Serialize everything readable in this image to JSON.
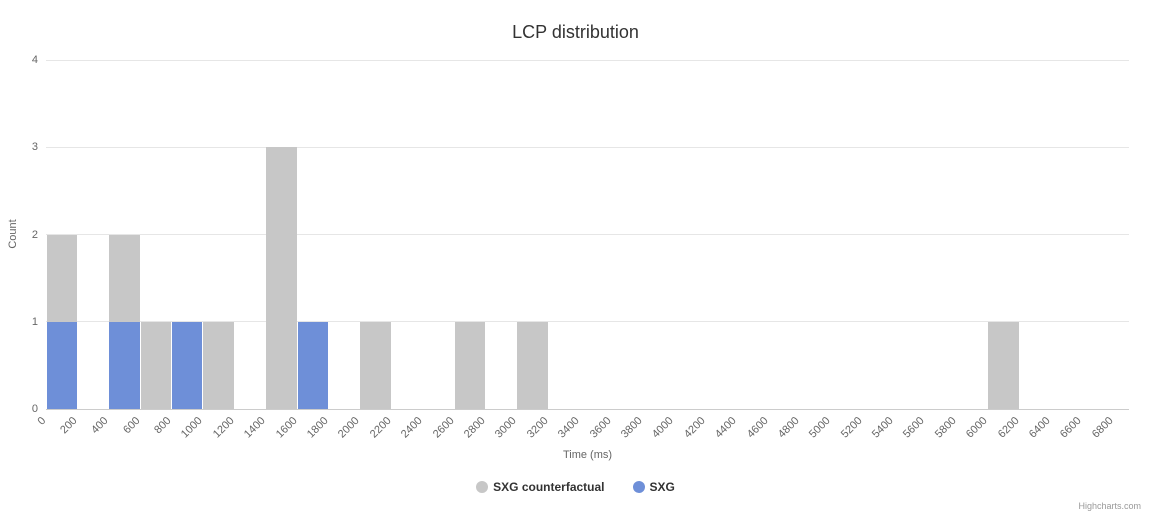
{
  "chart": {
    "credits_label": "Highcharts.com"
  },
  "chart_data": {
    "type": "bar",
    "title": "LCP distribution",
    "xlabel": "Time (ms)",
    "ylabel": "Count",
    "x_range": [
      0,
      6900
    ],
    "bin_width_ms": 200,
    "x_ticks": [
      0,
      200,
      400,
      600,
      800,
      1000,
      1200,
      1400,
      1600,
      1800,
      2000,
      2200,
      2400,
      2600,
      2800,
      3000,
      3200,
      3400,
      3600,
      3800,
      4000,
      4200,
      4400,
      4600,
      4800,
      5000,
      5200,
      5400,
      5600,
      5800,
      6000,
      6200,
      6400,
      6600,
      6800
    ],
    "ylim": [
      0,
      4
    ],
    "y_ticks": [
      0,
      1,
      2,
      3,
      4
    ],
    "grid": true,
    "legend_position": "bottom-center",
    "series": [
      {
        "name": "SXG counterfactual",
        "color": "#c7c7c7",
        "points": [
          {
            "x": 0,
            "y": 2
          },
          {
            "x": 400,
            "y": 2
          },
          {
            "x": 600,
            "y": 1
          },
          {
            "x": 1000,
            "y": 1
          },
          {
            "x": 1400,
            "y": 3
          },
          {
            "x": 2000,
            "y": 1
          },
          {
            "x": 2600,
            "y": 1
          },
          {
            "x": 3000,
            "y": 1
          },
          {
            "x": 6000,
            "y": 1
          }
        ]
      },
      {
        "name": "SXG",
        "color": "#6e8fd8",
        "points": [
          {
            "x": 0,
            "y": 1
          },
          {
            "x": 400,
            "y": 1
          },
          {
            "x": 800,
            "y": 1
          },
          {
            "x": 1600,
            "y": 1
          }
        ]
      }
    ]
  }
}
